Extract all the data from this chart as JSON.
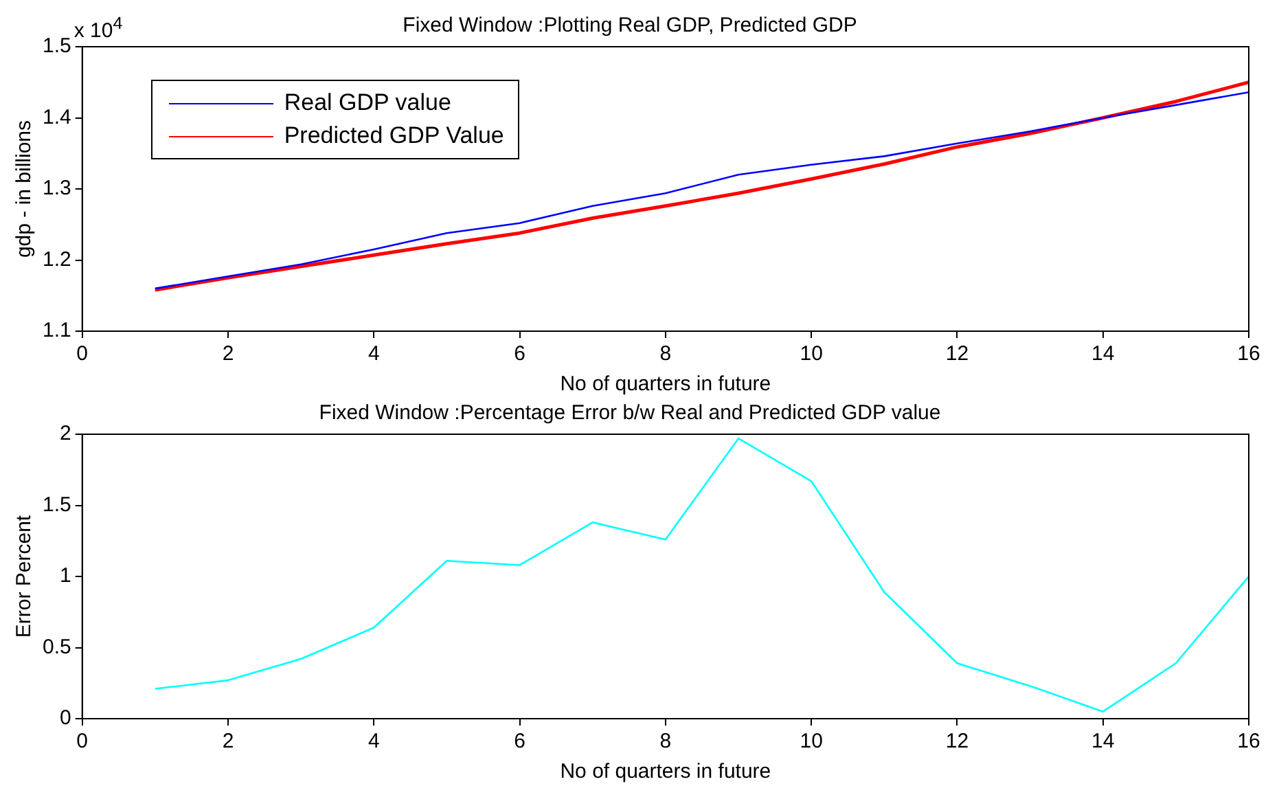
{
  "chart_data": [
    {
      "type": "line",
      "title": "Fixed Window :Plotting Real GDP, Predicted GDP",
      "xlabel": "No of quarters in future",
      "ylabel": "gdp - in billions",
      "annotations": [
        "x 10$^{4}$"
      ],
      "x": [
        1,
        2,
        3,
        4,
        5,
        6,
        7,
        8,
        9,
        10,
        11,
        12,
        13,
        14,
        15,
        16
      ],
      "series": [
        {
          "name": "Real GDP value",
          "color": "#0000ff",
          "values": [
            1.16,
            1.177,
            1.194,
            1.215,
            1.238,
            1.252,
            1.276,
            1.294,
            1.32,
            1.334,
            1.346,
            1.364,
            1.381,
            1.4,
            1.418,
            1.436
          ]
        },
        {
          "name": "Predicted GDP Value",
          "color": "#ff0000",
          "values": [
            1.158,
            1.175,
            1.191,
            1.207,
            1.223,
            1.238,
            1.259,
            1.276,
            1.294,
            1.314,
            1.335,
            1.359,
            1.378,
            1.4,
            1.423,
            1.45
          ]
        }
      ],
      "xlim": [
        0,
        16
      ],
      "xticks": [
        0,
        2,
        4,
        6,
        8,
        10,
        12,
        14,
        16
      ],
      "ylim": [
        1.1,
        1.5
      ],
      "yticks": [
        1.1,
        1.2,
        1.3,
        1.4,
        1.5
      ],
      "legend": "top left"
    },
    {
      "type": "line",
      "title": "Fixed Window :Percentage Error b/w Real and Predicted GDP value",
      "xlabel": "No of quarters in future",
      "ylabel": "Error Percent",
      "x": [
        1,
        2,
        3,
        4,
        5,
        6,
        7,
        8,
        9,
        10,
        11,
        12,
        13,
        14,
        15,
        16
      ],
      "series": [
        {
          "color": "#00ffff",
          "values": [
            0.21,
            0.27,
            0.42,
            0.64,
            1.11,
            1.08,
            1.38,
            1.26,
            1.97,
            1.67,
            0.89,
            0.39,
            0.23,
            0.05,
            0.39,
            1.0
          ]
        }
      ],
      "xlim": [
        0,
        16
      ],
      "xticks": [
        0,
        2,
        4,
        6,
        8,
        10,
        12,
        14,
        16
      ],
      "ylim": [
        0,
        2
      ],
      "yticks": [
        0,
        0.5,
        1,
        1.5,
        2
      ]
    }
  ]
}
